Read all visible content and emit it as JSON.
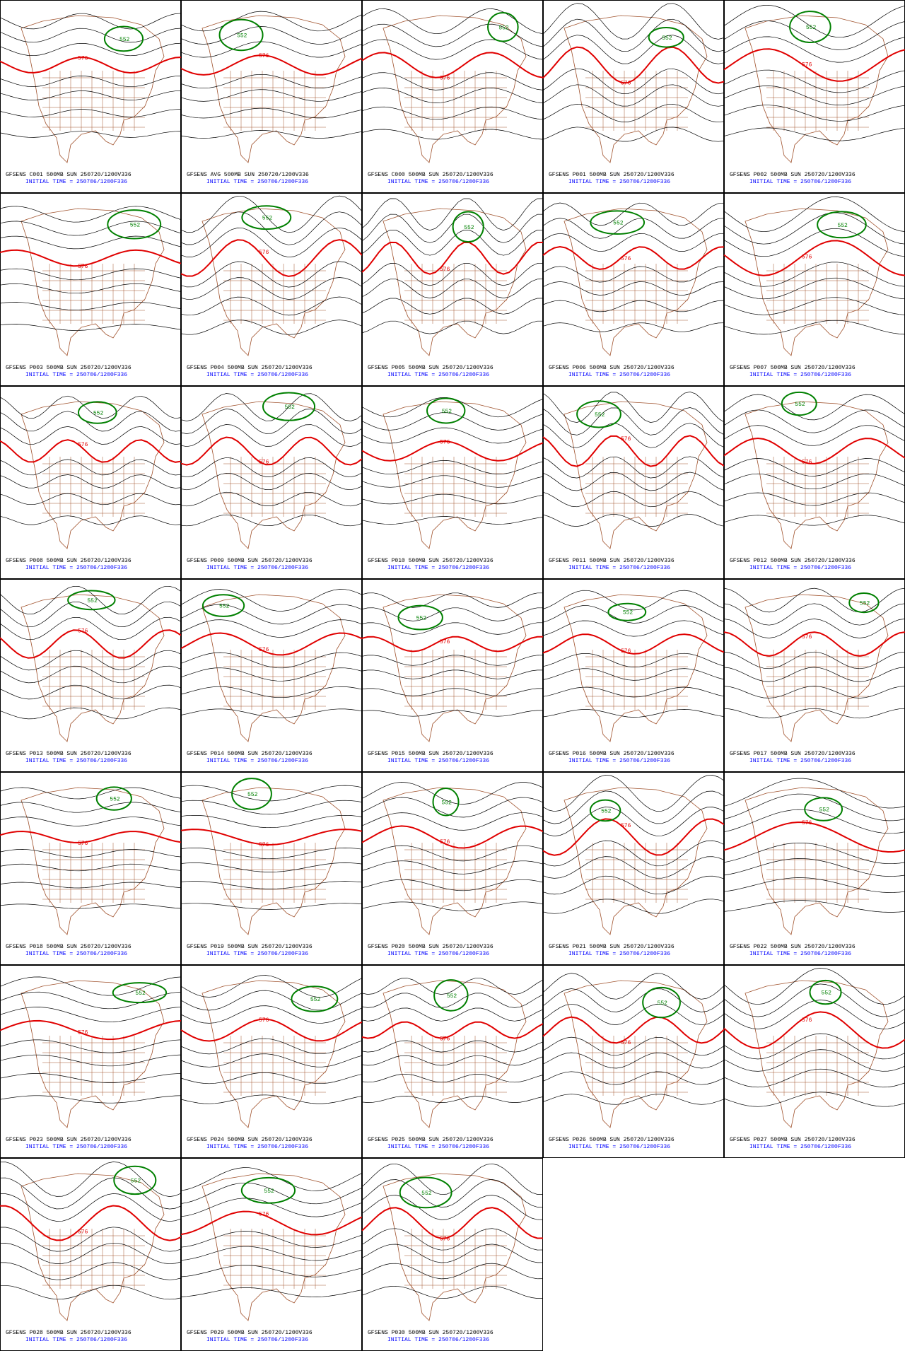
{
  "panels": [
    {
      "caption": "GFSENS C001 500MB SUN 250720/1200V336",
      "initial_time": "INITIAL TIME = 250706/1200F336",
      "contour_labels": [
        "576",
        "552"
      ]
    },
    {
      "caption": "GFSENS AVG 500MB SUN 250720/1200V336",
      "initial_time": "INITIAL TIME = 250706/1200F336",
      "contour_labels": [
        "576",
        "552"
      ]
    },
    {
      "caption": "GFSENS C000 500MB SUN 250720/1200V336",
      "initial_time": "INITIAL TIME = 250706/1200F336",
      "contour_labels": [
        "576",
        "552"
      ]
    },
    {
      "caption": "GFSENS P001 500MB SUN 250720/1200V336",
      "initial_time": "INITIAL TIME = 250706/1200F336",
      "contour_labels": [
        "576",
        "552"
      ]
    },
    {
      "caption": "GFSENS P002 500MB SUN 250720/1200V336",
      "initial_time": "INITIAL TIME = 250706/1200F336",
      "contour_labels": [
        "576",
        "552"
      ]
    },
    {
      "caption": "GFSENS P003 500MB SUN 250720/1200V336",
      "initial_time": "INITIAL TIME = 250706/1200F336",
      "contour_labels": [
        "576",
        "552"
      ]
    },
    {
      "caption": "GFSENS P004 500MB SUN 250720/1200V336",
      "initial_time": "INITIAL TIME = 250706/1200F336",
      "contour_labels": [
        "576",
        "552"
      ]
    },
    {
      "caption": "GFSENS P005 500MB SUN 250720/1200V336",
      "initial_time": "INITIAL TIME = 250706/1200F336",
      "contour_labels": [
        "576",
        "552"
      ]
    },
    {
      "caption": "GFSENS P006 500MB SUN 250720/1200V336",
      "initial_time": "INITIAL TIME = 250706/1200F336",
      "contour_labels": [
        "576",
        "552"
      ]
    },
    {
      "caption": "GFSENS P007 500MB SUN 250720/1200V336",
      "initial_time": "INITIAL TIME = 250706/1200F336",
      "contour_labels": [
        "576",
        "552"
      ]
    },
    {
      "caption": "GFSENS P008 500MB SUN 250720/1200V336",
      "initial_time": "INITIAL TIME = 250706/1200F336",
      "contour_labels": [
        "576",
        "552"
      ]
    },
    {
      "caption": "GFSENS P009 500MB SUN 250720/1200V336",
      "initial_time": "INITIAL TIME = 250706/1200F336",
      "contour_labels": [
        "576",
        "552"
      ]
    },
    {
      "caption": "GFSENS P010 500MB SUN 250720/1200V336",
      "initial_time": "INITIAL TIME = 250706/1200F336",
      "contour_labels": [
        "576",
        "552"
      ]
    },
    {
      "caption": "GFSENS P011 500MB SUN 250720/1200V336",
      "initial_time": "INITIAL TIME = 250706/1200F336",
      "contour_labels": [
        "576",
        "552"
      ]
    },
    {
      "caption": "GFSENS P012 500MB SUN 250720/1200V336",
      "initial_time": "INITIAL TIME = 250706/1200F336",
      "contour_labels": [
        "576",
        "552"
      ]
    },
    {
      "caption": "GFSENS P013 500MB SUN 250720/1200V336",
      "initial_time": "INITIAL TIME = 250706/1200F336",
      "contour_labels": [
        "576",
        "552"
      ]
    },
    {
      "caption": "GFSENS P014 500MB SUN 250720/1200V336",
      "initial_time": "INITIAL TIME = 250706/1200F336",
      "contour_labels": [
        "576",
        "552"
      ]
    },
    {
      "caption": "GFSENS P015 500MB SUN 250720/1200V336",
      "initial_time": "INITIAL TIME = 250706/1200F336",
      "contour_labels": [
        "576",
        "552"
      ]
    },
    {
      "caption": "GFSENS P016 500MB SUN 250720/1200V336",
      "initial_time": "INITIAL TIME = 250706/1200F336",
      "contour_labels": [
        "576",
        "552"
      ]
    },
    {
      "caption": "GFSENS P017 500MB SUN 250720/1200V336",
      "initial_time": "INITIAL TIME = 250706/1200F336",
      "contour_labels": [
        "576",
        "552"
      ]
    },
    {
      "caption": "GFSENS P018 500MB SUN 250720/1200V336",
      "initial_time": "INITIAL TIME = 250706/1200F336",
      "contour_labels": [
        "576",
        "552"
      ]
    },
    {
      "caption": "GFSENS P019 500MB SUN 250720/1200V336",
      "initial_time": "INITIAL TIME = 250706/1200F336",
      "contour_labels": [
        "576",
        "552"
      ]
    },
    {
      "caption": "GFSENS P020 500MB SUN 250720/1200V336",
      "initial_time": "INITIAL TIME = 250706/1200F336",
      "contour_labels": [
        "576",
        "552"
      ]
    },
    {
      "caption": "GFSENS P021 500MB SUN 250720/1200V336",
      "initial_time": "INITIAL TIME = 250706/1200F336",
      "contour_labels": [
        "576",
        "552"
      ]
    },
    {
      "caption": "GFSENS P022 500MB SUN 250720/1200V336",
      "initial_time": "INITIAL TIME = 250706/1200F336",
      "contour_labels": [
        "576",
        "552"
      ]
    },
    {
      "caption": "GFSENS P023 500MB SUN 250720/1200V336",
      "initial_time": "INITIAL TIME = 250706/1200F336",
      "contour_labels": [
        "576",
        "552"
      ]
    },
    {
      "caption": "GFSENS P024 500MB SUN 250720/1200V336",
      "initial_time": "INITIAL TIME = 250706/1200F336",
      "contour_labels": [
        "576",
        "552"
      ]
    },
    {
      "caption": "GFSENS P025 500MB SUN 250720/1200V336",
      "initial_time": "INITIAL TIME = 250706/1200F336",
      "contour_labels": [
        "576",
        "552"
      ]
    },
    {
      "caption": "GFSENS P026 500MB SUN 250720/1200V336",
      "initial_time": "INITIAL TIME = 250706/1200F336",
      "contour_labels": [
        "576",
        "552"
      ]
    },
    {
      "caption": "GFSENS P027 500MB SUN 250720/1200V336",
      "initial_time": "INITIAL TIME = 250706/1200F336",
      "contour_labels": [
        "576",
        "552"
      ]
    },
    {
      "caption": "GFSENS P028 500MB SUN 250720/1200V336",
      "initial_time": "INITIAL TIME = 250706/1200F336",
      "contour_labels": [
        "576",
        "552"
      ]
    },
    {
      "caption": "GFSENS P029 500MB SUN 250720/1200V336",
      "initial_time": "INITIAL TIME = 250706/1200F336",
      "contour_labels": [
        "576",
        "552"
      ]
    },
    {
      "caption": "GFSENS P030 500MB SUN 250720/1200V336",
      "initial_time": "INITIAL TIME = 250706/1200F336",
      "contour_labels": [
        "576",
        "552"
      ]
    }
  ]
}
